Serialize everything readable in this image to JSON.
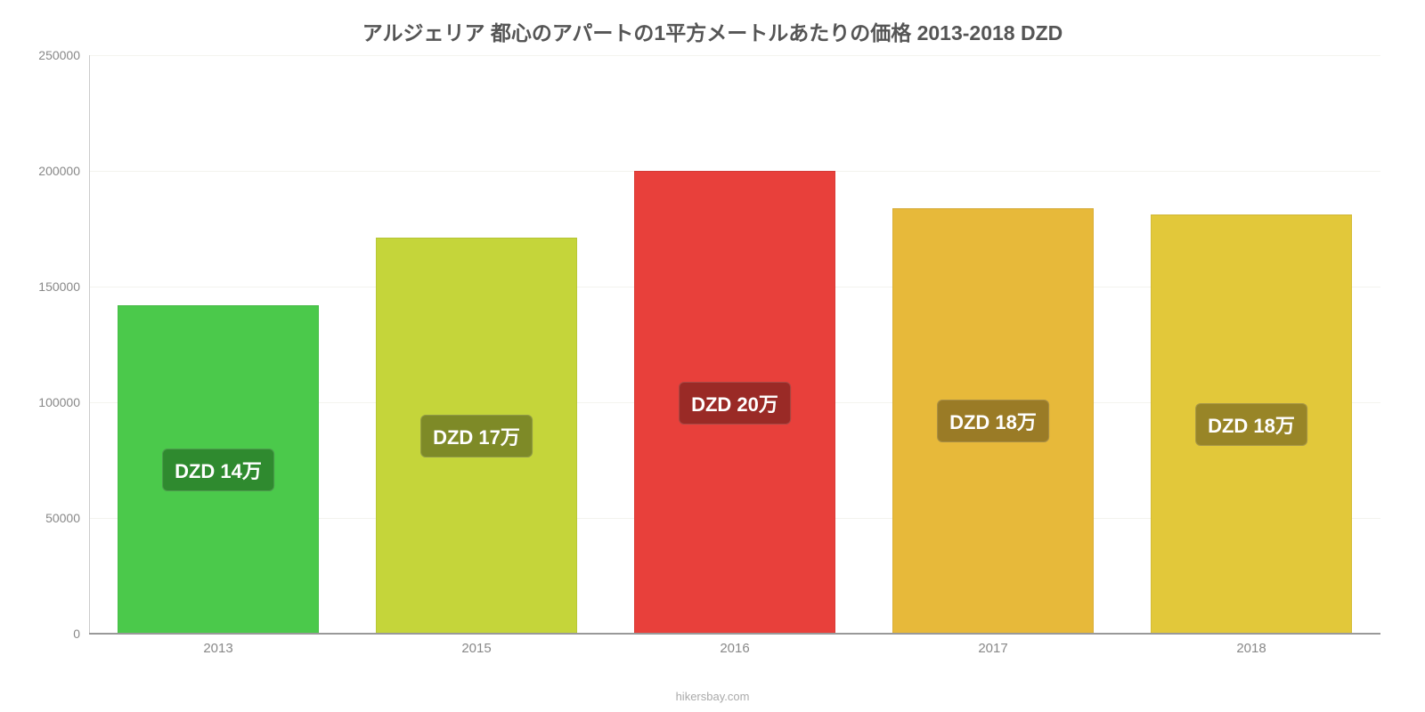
{
  "chart": {
    "type": "bar",
    "title": "アルジェリア 都心のアパートの1平方メートルあたりの価格 2013-2018 DZD",
    "title_fontsize": 23,
    "title_color": "#555555",
    "background_color": "#ffffff",
    "grid_color": "#f3f3ee",
    "axis_line_color": "#999999",
    "yaxis_line_color": "#cccccc",
    "tick_color": "#888888",
    "ylim": [
      0,
      250000
    ],
    "yticks": [
      0,
      50000,
      100000,
      150000,
      200000,
      250000
    ],
    "ytick_fontsize": 14,
    "xtick_fontsize": 15,
    "bar_width_pct": 78,
    "categories": [
      "2013",
      "2015",
      "2016",
      "2017",
      "2018"
    ],
    "values": [
      142000,
      171000,
      200000,
      184000,
      181000
    ],
    "bar_colors": [
      "#4bc94b",
      "#c5d53a",
      "#e8403b",
      "#e7b93a",
      "#e2c83a"
    ],
    "bar_labels": [
      "DZD 14万",
      "DZD 17万",
      "DZD 20万",
      "DZD 18万",
      "DZD 18万"
    ],
    "bar_label_bg": [
      "#2f8a2f",
      "#7e8a27",
      "#9a2a26",
      "#9a7b26",
      "#988527"
    ],
    "bar_label_fontsize": 22,
    "bar_label_color": "#ffffff",
    "source": "hikersbay.com",
    "source_color": "#aaaaaa",
    "source_fontsize": 13
  }
}
